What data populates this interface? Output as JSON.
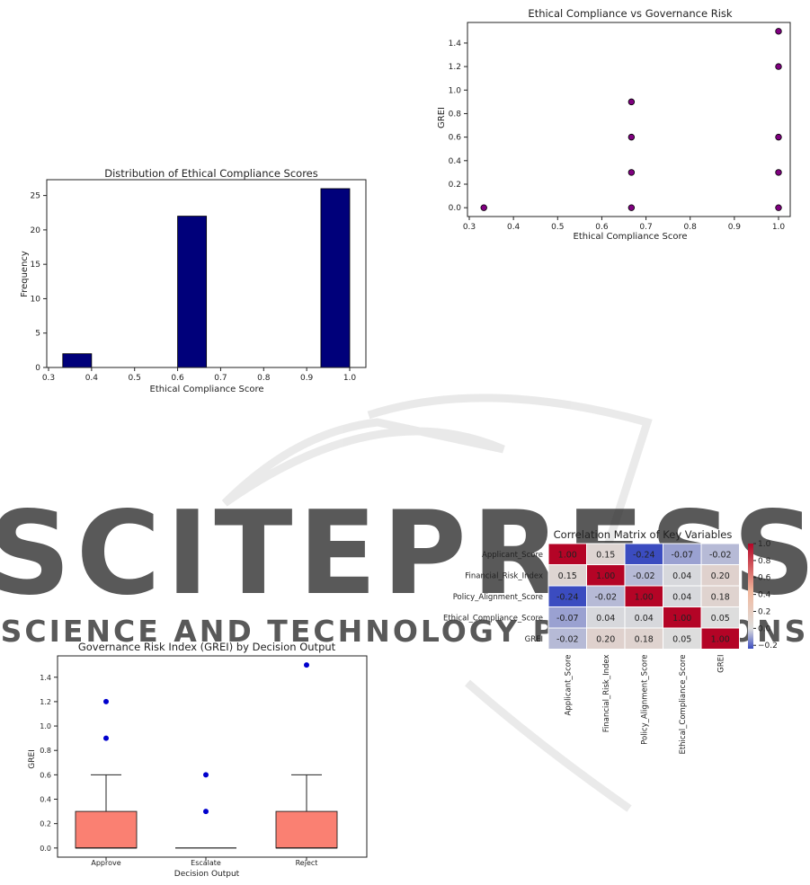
{
  "watermark": {
    "line1": "SCITEPRESS",
    "line2": "SCIENCE AND TECHNOLOGY PUBLICATIONS"
  },
  "colors": {
    "hist_bar": "#00007a",
    "scatter_fill": "#800080",
    "box_fill": "#fa8072",
    "outlier": "#0000cd",
    "heat_low": "#3b4cc0",
    "heat_mid": "#dddddd",
    "heat_high": "#b40426"
  },
  "chart_data": [
    {
      "id": "hist",
      "type": "bar",
      "title": "Distribution of Ethical Compliance Scores",
      "xlabel": "Ethical Compliance Score",
      "ylabel": "Frequency",
      "xlim": [
        0.3,
        1.0
      ],
      "ylim": [
        0,
        27.3
      ],
      "xticks": [
        "0.3",
        "0.4",
        "0.5",
        "0.6",
        "0.7",
        "0.8",
        "0.9",
        "1.0"
      ],
      "yticks": [
        "0",
        "5",
        "10",
        "15",
        "20",
        "25"
      ],
      "bins": [
        {
          "from": 0.333,
          "to": 0.4,
          "count": 2
        },
        {
          "from": 0.4,
          "to": 0.467,
          "count": 0
        },
        {
          "from": 0.467,
          "to": 0.533,
          "count": 0
        },
        {
          "from": 0.533,
          "to": 0.6,
          "count": 0
        },
        {
          "from": 0.6,
          "to": 0.667,
          "count": 22
        },
        {
          "from": 0.667,
          "to": 0.733,
          "count": 0
        },
        {
          "from": 0.733,
          "to": 0.8,
          "count": 0
        },
        {
          "from": 0.8,
          "to": 0.867,
          "count": 0
        },
        {
          "from": 0.867,
          "to": 0.933,
          "count": 0
        },
        {
          "from": 0.933,
          "to": 1.0,
          "count": 26
        }
      ]
    },
    {
      "id": "scatter",
      "type": "scatter",
      "title": "Ethical Compliance vs Governance Risk",
      "xlabel": "Ethical Compliance Score",
      "ylabel": "GREI",
      "xlim": [
        0.3,
        1.0
      ],
      "ylim": [
        -0.075,
        1.575
      ],
      "xticks": [
        "0.3",
        "0.4",
        "0.5",
        "0.6",
        "0.7",
        "0.8",
        "0.9",
        "1.0"
      ],
      "yticks": [
        "0.0",
        "0.2",
        "0.4",
        "0.6",
        "0.8",
        "1.0",
        "1.2",
        "1.4"
      ],
      "points": [
        {
          "x": 0.333,
          "y": 0.0
        },
        {
          "x": 0.667,
          "y": 0.0
        },
        {
          "x": 0.667,
          "y": 0.3
        },
        {
          "x": 0.667,
          "y": 0.6
        },
        {
          "x": 0.667,
          "y": 0.9
        },
        {
          "x": 1.0,
          "y": 0.0
        },
        {
          "x": 1.0,
          "y": 0.3
        },
        {
          "x": 1.0,
          "y": 0.6
        },
        {
          "x": 1.0,
          "y": 1.2
        },
        {
          "x": 1.0,
          "y": 1.5
        }
      ]
    },
    {
      "id": "heatmap",
      "type": "heatmap",
      "title": "Correlation Matrix of Key Variables",
      "labels": [
        "Applicant_Score",
        "Financial_Risk_Index",
        "Policy_Alignment_Score",
        "Ethical_Compliance_Score",
        "GREI"
      ],
      "matrix": [
        [
          "1.00",
          "0.15",
          "-0.24",
          "-0.07",
          "-0.02"
        ],
        [
          "0.15",
          "1.00",
          "-0.02",
          "0.04",
          "0.20"
        ],
        [
          "-0.24",
          "-0.02",
          "1.00",
          "0.04",
          "0.18"
        ],
        [
          "-0.07",
          "0.04",
          "0.04",
          "1.00",
          "0.05"
        ],
        [
          "-0.02",
          "0.20",
          "0.18",
          "0.05",
          "1.00"
        ]
      ],
      "colorbar_range": [
        -0.24,
        1.0
      ],
      "colorbar_ticks": [
        "1.0",
        "0.8",
        "0.6",
        "0.4",
        "0.2",
        "0.0",
        "−0.2"
      ]
    },
    {
      "id": "box",
      "type": "box",
      "title": "Governance Risk Index (GREI) by Decision Output",
      "xlabel": "Decision Output",
      "ylabel": "GREI",
      "ylim": [
        -0.075,
        1.575
      ],
      "yticks": [
        "0.0",
        "0.2",
        "0.4",
        "0.6",
        "0.8",
        "1.0",
        "1.2",
        "1.4"
      ],
      "categories": [
        "Approve",
        "Escalate",
        "Reject"
      ],
      "boxes": [
        {
          "q1": 0.0,
          "median": 0.0,
          "q3": 0.3,
          "whisker_low": 0.0,
          "whisker_high": 0.6,
          "outliers": [
            0.9,
            1.2
          ]
        },
        {
          "q1": 0.0,
          "median": 0.0,
          "q3": 0.0,
          "whisker_low": 0.0,
          "whisker_high": 0.0,
          "outliers": [
            0.3,
            0.6
          ]
        },
        {
          "q1": 0.0,
          "median": 0.0,
          "q3": 0.3,
          "whisker_low": 0.0,
          "whisker_high": 0.6,
          "outliers": [
            1.5
          ]
        }
      ]
    }
  ]
}
